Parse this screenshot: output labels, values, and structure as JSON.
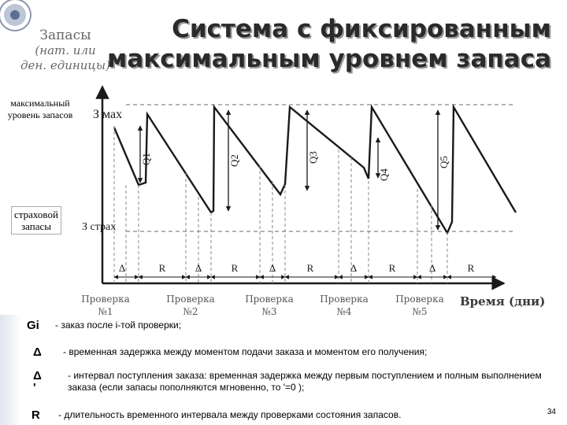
{
  "title": {
    "line1": "Система с фиксированным",
    "line2": "максимальным уровнем запаса"
  },
  "y_axis": {
    "line1": "Запасы",
    "line2": "(нат. или",
    "line3": "ден. единицы)"
  },
  "side_labels": {
    "max": "максимальный уровень запасов",
    "safety": "страховой запасы"
  },
  "axis": {
    "z_max": "З мах",
    "z_safe": "З страх",
    "time_label": "Время (дни)"
  },
  "checks": [
    {
      "line1": "Проверка",
      "line2": "№1"
    },
    {
      "line1": "Проверка",
      "line2": "№2"
    },
    {
      "line1": "Проверка",
      "line2": "№3"
    },
    {
      "line1": "Проверка",
      "line2": "№4"
    },
    {
      "line1": "Проверка",
      "line2": "№5"
    }
  ],
  "q_labels": [
    "Q1",
    "Q2",
    "Q3",
    "Q4",
    "Q5"
  ],
  "markers": {
    "delta": "Δ",
    "r": "R",
    "delta_prime": "'"
  },
  "legend": [
    {
      "symbol": "Gi",
      "text": "- заказ после i-той проверки;"
    },
    {
      "symbol": "Δ",
      "text": "- временная задержка между моментом подачи заказа и моментом его получения;"
    },
    {
      "symbol": "Δ '",
      "text": "- интервал поступления заказа: временная задержка между первым поступлением и полным выполнением заказа (если запасы пополняются мгновенно, то '=0 );"
    },
    {
      "symbol": "R",
      "text": "- длительность временного интервала между проверками состояния запасов."
    }
  ],
  "page_number": "34",
  "colors": {
    "line": "#1a1a1a",
    "dashed": "#888888",
    "title_shadow": "#9a9a9a"
  }
}
